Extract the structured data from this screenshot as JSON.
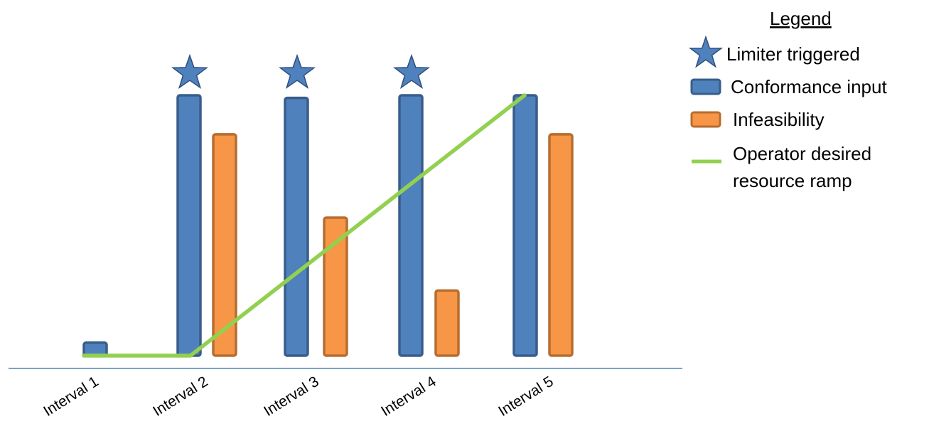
{
  "chart_data": {
    "type": "bar",
    "categories": [
      "Interval 1",
      "Interval 2",
      "Interval 3",
      "Interval 4",
      "Interval 5"
    ],
    "ylim": [
      0,
      100
    ],
    "series": [
      {
        "name": "Conformance input",
        "color": "#4f81bd",
        "stroke": "#385d8a",
        "values": [
          5,
          100,
          99,
          100,
          100
        ]
      },
      {
        "name": "Infeasibility",
        "color": "#f79646",
        "stroke": "#b66d31",
        "values": [
          null,
          85,
          53,
          25,
          85
        ]
      }
    ],
    "line": {
      "name": "Operator desired resource ramp",
      "color": "#92d050",
      "values": [
        0,
        0,
        100
      ]
    },
    "limiter": {
      "name": "Limiter triggered",
      "color": "#4f81bd",
      "stroke": "#2f4f7f",
      "intervals": [
        "Interval 2",
        "Interval 3",
        "Interval 4"
      ]
    },
    "legend": {
      "title": "Legend",
      "placement": "top-right",
      "entries": [
        {
          "label": "Limiter triggered",
          "symbol": "star-icon"
        },
        {
          "label": "Conformance input",
          "symbol": "blue-rect"
        },
        {
          "label": "Infeasibility",
          "symbol": "orange-rect"
        },
        {
          "label_lines": [
            "Operator desired",
            "resource ramp"
          ],
          "symbol": "green-line"
        }
      ]
    },
    "axis_color": "#4f81bd",
    "grid": false
  }
}
